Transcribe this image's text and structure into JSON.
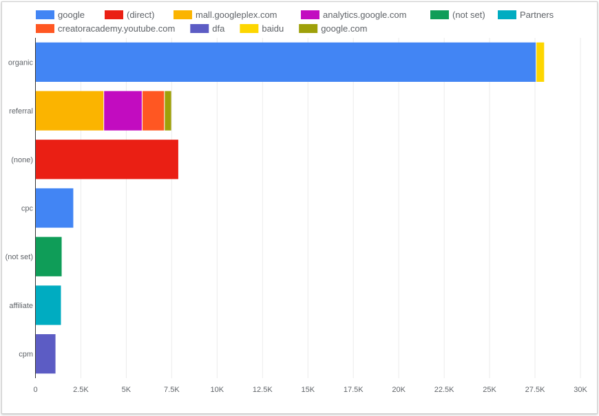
{
  "chart_data": {
    "type": "bar",
    "orientation": "horizontal",
    "stacked": true,
    "title": "",
    "xlabel": "",
    "ylabel": "",
    "categories": [
      "organic",
      "referral",
      "(none)",
      "cpc",
      "(not set)",
      "affiliate",
      "cpm"
    ],
    "xlim": [
      0,
      30000
    ],
    "x_ticks": [
      0,
      2500,
      5000,
      7500,
      10000,
      12500,
      15000,
      17500,
      20000,
      22500,
      25000,
      27500,
      30000
    ],
    "x_tick_labels": [
      "0",
      "2.5K",
      "5K",
      "7.5K",
      "10K",
      "12.5K",
      "15K",
      "17.5K",
      "20K",
      "22.5K",
      "25K",
      "27.5K",
      "30K"
    ],
    "grid": true,
    "legend_position": "top",
    "series": [
      {
        "name": "google",
        "color": "#4285f4",
        "values": [
          27580,
          0,
          0,
          2120,
          0,
          0,
          0
        ]
      },
      {
        "name": "(direct)",
        "color": "#ea1f14",
        "values": [
          0,
          0,
          7900,
          0,
          0,
          0,
          0
        ]
      },
      {
        "name": "mall.googleplex.com",
        "color": "#fbb400",
        "values": [
          0,
          3780,
          0,
          0,
          0,
          0,
          0
        ]
      },
      {
        "name": "analytics.google.com",
        "color": "#c20cc0",
        "values": [
          0,
          2110,
          0,
          0,
          0,
          0,
          0
        ]
      },
      {
        "name": "(not set)",
        "color": "#0f9d58",
        "values": [
          0,
          0,
          0,
          0,
          1480,
          0,
          0
        ]
      },
      {
        "name": "Partners",
        "color": "#00acc1",
        "values": [
          0,
          0,
          0,
          0,
          0,
          1440,
          0
        ]
      },
      {
        "name": "creatoracademy.youtube.com",
        "color": "#ff5722",
        "values": [
          0,
          1230,
          0,
          0,
          0,
          0,
          0
        ]
      },
      {
        "name": "dfa",
        "color": "#5c5cc4",
        "values": [
          0,
          0,
          0,
          0,
          0,
          0,
          1140
        ]
      },
      {
        "name": "baidu",
        "color": "#fdd600",
        "values": [
          460,
          0,
          0,
          0,
          0,
          0,
          0
        ]
      },
      {
        "name": "google.com",
        "color": "#9ea00a",
        "values": [
          0,
          390,
          0,
          0,
          0,
          0,
          0
        ]
      }
    ]
  }
}
